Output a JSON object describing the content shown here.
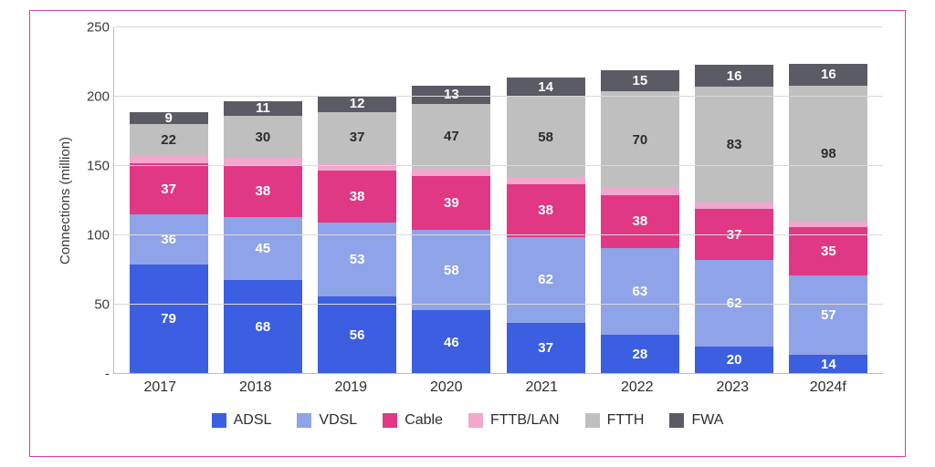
{
  "chart": {
    "type": "stacked-bar",
    "y_axis_label": "Connections (million)",
    "ylim": [
      0,
      250
    ],
    "ytick_step": 50,
    "yticks": [
      {
        "value": 0,
        "label": "-"
      },
      {
        "value": 50,
        "label": "50"
      },
      {
        "value": 100,
        "label": "100"
      },
      {
        "value": 150,
        "label": "150"
      },
      {
        "value": 200,
        "label": "200"
      },
      {
        "value": 250,
        "label": "250"
      }
    ],
    "categories": [
      "2017",
      "2018",
      "2019",
      "2020",
      "2021",
      "2022",
      "2023",
      "2024f"
    ],
    "series": [
      {
        "key": "adsl",
        "label": "ADSL",
        "color": "#3b5fe0",
        "text": "light"
      },
      {
        "key": "vdsl",
        "label": "VDSL",
        "color": "#8fa3e8",
        "text": "light"
      },
      {
        "key": "cable",
        "label": "Cable",
        "color": "#e03884",
        "text": "light"
      },
      {
        "key": "fttb",
        "label": "FTTB/LAN",
        "color": "#f2a8cc",
        "text": "light"
      },
      {
        "key": "ftth",
        "label": "FTTH",
        "color": "#bfbfbf",
        "text": "dark"
      },
      {
        "key": "fwa",
        "label": "FWA",
        "color": "#5b5b66",
        "text": "light"
      }
    ],
    "data": [
      {
        "adsl": 79,
        "vdsl": 36,
        "cable": 37,
        "fttb": 6,
        "ftth": 22,
        "fwa": 9
      },
      {
        "adsl": 68,
        "vdsl": 45,
        "cable": 38,
        "fttb": 5,
        "ftth": 30,
        "fwa": 11
      },
      {
        "adsl": 56,
        "vdsl": 53,
        "cable": 38,
        "fttb": 5,
        "ftth": 37,
        "fwa": 12
      },
      {
        "adsl": 46,
        "vdsl": 58,
        "cable": 39,
        "fttb": 5,
        "ftth": 47,
        "fwa": 13
      },
      {
        "adsl": 37,
        "vdsl": 62,
        "cable": 38,
        "fttb": 5,
        "ftth": 58,
        "fwa": 14
      },
      {
        "adsl": 28,
        "vdsl": 63,
        "cable": 38,
        "fttb": 5,
        "ftth": 70,
        "fwa": 15
      },
      {
        "adsl": 20,
        "vdsl": 62,
        "cable": 37,
        "fttb": 5,
        "ftth": 83,
        "fwa": 16
      },
      {
        "adsl": 14,
        "vdsl": 57,
        "cable": 35,
        "fttb": 4,
        "ftth": 98,
        "fwa": 16
      }
    ],
    "label_min_value": 8,
    "background_color": "#ffffff",
    "grid_color": "#d9d9d9",
    "border_color": "#e037a5",
    "label_fontsize": 15,
    "axis_fontsize": 15,
    "legend_fontsize": 16
  }
}
